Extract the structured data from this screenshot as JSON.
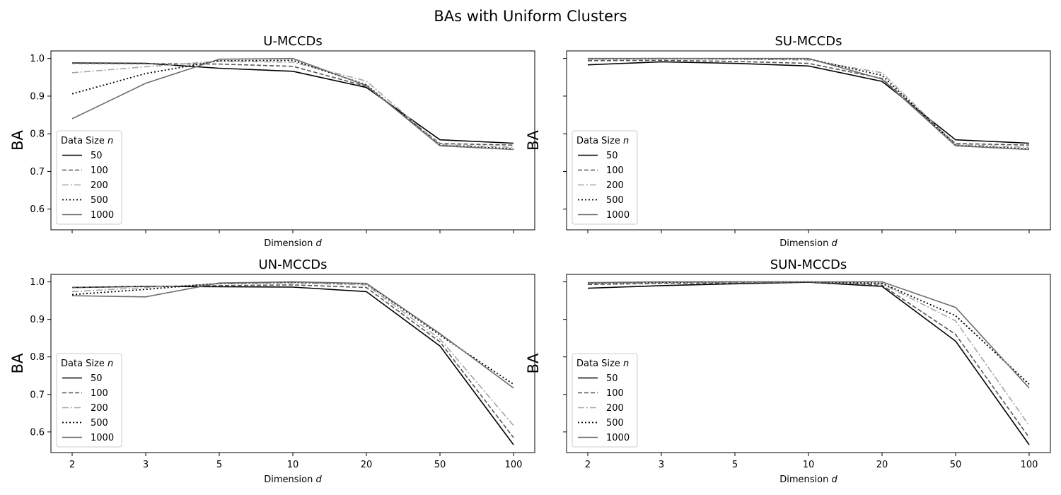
{
  "figure": {
    "title": "BAs with Uniform Clusters"
  },
  "colors": {
    "n50": "#000000",
    "n100": "#555555",
    "n200": "#a6a6a6",
    "n500": "#000000",
    "n1000": "#6e6e6e"
  },
  "legend": {
    "title": "Data Size",
    "title_var": "n"
  },
  "chart_data": [
    {
      "type": "line",
      "title": "U-MCCDs",
      "xlabel": "Dimension",
      "xlabel_var": "d",
      "ylabel": "BA",
      "categories": [
        "2",
        "3",
        "5",
        "10",
        "20",
        "50",
        "100"
      ],
      "ylim": [
        0.545,
        1.02
      ],
      "yticks": [
        0.6,
        0.7,
        0.8,
        0.9,
        1.0
      ],
      "show_xtick_labels": false,
      "show_ytick_labels": true,
      "grid": false,
      "legend_position": "lower-left",
      "series": [
        {
          "name": "50",
          "values": [
            0.988,
            0.987,
            0.974,
            0.966,
            0.923,
            0.784,
            0.775
          ]
        },
        {
          "name": "100",
          "values": [
            0.987,
            0.986,
            0.985,
            0.979,
            0.926,
            0.774,
            0.77
          ]
        },
        {
          "name": "200",
          "values": [
            0.962,
            0.978,
            0.993,
            0.99,
            0.94,
            0.771,
            0.764
          ]
        },
        {
          "name": "500",
          "values": [
            0.906,
            0.96,
            0.994,
            0.995,
            0.93,
            0.769,
            0.76
          ]
        },
        {
          "name": "1000",
          "values": [
            0.84,
            0.934,
            0.998,
            1.0,
            0.928,
            0.768,
            0.758
          ]
        }
      ]
    },
    {
      "type": "line",
      "title": "SU-MCCDs",
      "xlabel": "Dimension",
      "xlabel_var": "d",
      "ylabel": "BA",
      "categories": [
        "2",
        "3",
        "5",
        "10",
        "20",
        "50",
        "100"
      ],
      "ylim": [
        0.545,
        1.02
      ],
      "yticks": [
        0.6,
        0.7,
        0.8,
        0.9,
        1.0
      ],
      "show_xtick_labels": false,
      "show_ytick_labels": false,
      "grid": false,
      "legend_position": "lower-left",
      "series": [
        {
          "name": "50",
          "values": [
            0.983,
            0.991,
            0.987,
            0.98,
            0.939,
            0.784,
            0.775
          ]
        },
        {
          "name": "100",
          "values": [
            0.994,
            0.995,
            0.992,
            0.987,
            0.947,
            0.774,
            0.77
          ]
        },
        {
          "name": "200",
          "values": [
            0.998,
            0.999,
            0.998,
            0.996,
            0.962,
            0.771,
            0.764
          ]
        },
        {
          "name": "500",
          "values": [
            0.999,
            1.0,
            0.999,
            0.999,
            0.955,
            0.769,
            0.76
          ]
        },
        {
          "name": "1000",
          "values": [
            1.0,
            1.0,
            1.0,
            1.0,
            0.945,
            0.768,
            0.758
          ]
        }
      ]
    },
    {
      "type": "line",
      "title": "UN-MCCDs",
      "xlabel": "Dimension",
      "xlabel_var": "d",
      "ylabel": "BA",
      "categories": [
        "2",
        "3",
        "5",
        "10",
        "20",
        "50",
        "100"
      ],
      "ylim": [
        0.545,
        1.02
      ],
      "yticks": [
        0.6,
        0.7,
        0.8,
        0.9,
        1.0
      ],
      "show_xtick_labels": true,
      "show_ytick_labels": true,
      "grid": false,
      "legend_position": "lower-left",
      "series": [
        {
          "name": "50",
          "values": [
            0.985,
            0.988,
            0.987,
            0.986,
            0.974,
            0.829,
            0.566
          ]
        },
        {
          "name": "100",
          "values": [
            0.985,
            0.988,
            0.99,
            0.992,
            0.985,
            0.84,
            0.585
          ]
        },
        {
          "name": "200",
          "values": [
            0.974,
            0.985,
            0.995,
            0.997,
            0.992,
            0.848,
            0.617
          ]
        },
        {
          "name": "500",
          "values": [
            0.966,
            0.98,
            0.996,
            0.999,
            0.995,
            0.858,
            0.727
          ]
        },
        {
          "name": "1000",
          "values": [
            0.963,
            0.96,
            0.997,
            1.0,
            0.996,
            0.862,
            0.717
          ]
        }
      ]
    },
    {
      "type": "line",
      "title": "SUN-MCCDs",
      "xlabel": "Dimension",
      "xlabel_var": "d",
      "ylabel": "BA",
      "categories": [
        "2",
        "3",
        "5",
        "10",
        "20",
        "50",
        "100"
      ],
      "ylim": [
        0.545,
        1.02
      ],
      "yticks": [
        0.6,
        0.7,
        0.8,
        0.9,
        1.0
      ],
      "show_xtick_labels": true,
      "show_ytick_labels": false,
      "grid": false,
      "legend_position": "lower-left",
      "series": [
        {
          "name": "50",
          "values": [
            0.983,
            0.99,
            0.995,
            0.999,
            0.988,
            0.842,
            0.566
          ]
        },
        {
          "name": "100",
          "values": [
            0.993,
            0.996,
            0.997,
            1.0,
            0.991,
            0.86,
            0.585
          ]
        },
        {
          "name": "200",
          "values": [
            0.996,
            0.998,
            0.999,
            1.0,
            0.995,
            0.896,
            0.617
          ]
        },
        {
          "name": "500",
          "values": [
            0.997,
            0.999,
            1.0,
            1.0,
            0.996,
            0.91,
            0.727
          ]
        },
        {
          "name": "1000",
          "values": [
            0.998,
            1.0,
            1.0,
            1.0,
            1.0,
            0.932,
            0.717
          ]
        }
      ]
    }
  ]
}
